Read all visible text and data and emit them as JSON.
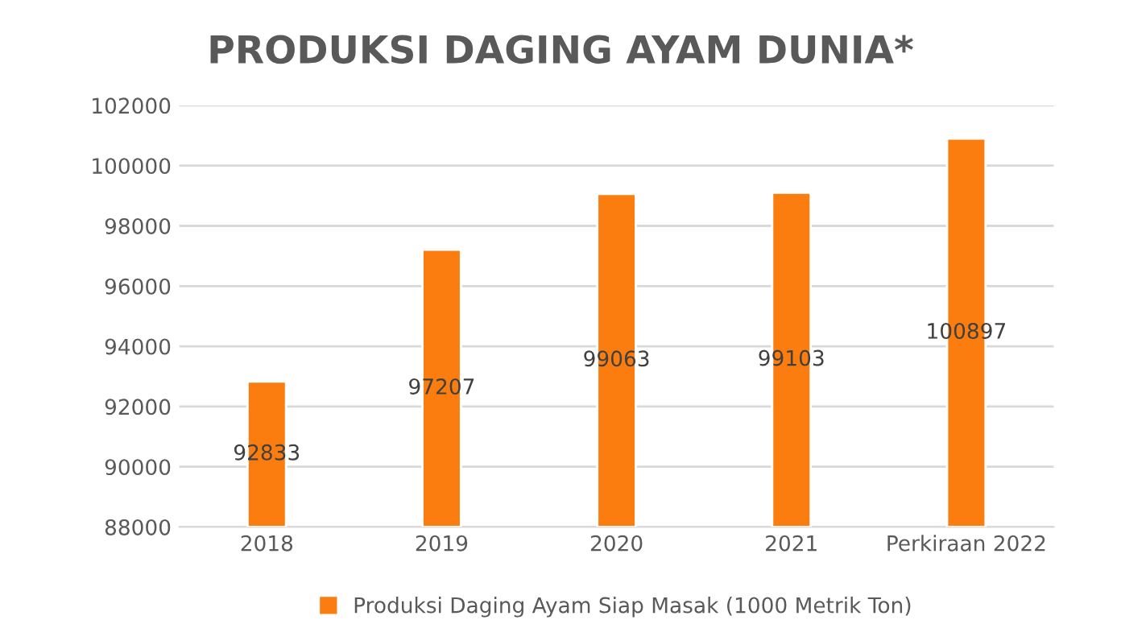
{
  "chart_data": {
    "type": "bar",
    "title": "PRODUKSI DAGING AYAM DUNIA*",
    "categories": [
      "2018",
      "2019",
      "2020",
      "2021",
      "Perkiraan 2022"
    ],
    "series": [
      {
        "name": "Produksi Daging Ayam Siap Masak (1000 Metrik Ton)",
        "color": "#fb7d10",
        "values": [
          92833,
          97207,
          99063,
          99103,
          100897
        ]
      }
    ],
    "ylim": [
      88000,
      102000
    ],
    "yticks": [
      88000,
      90000,
      92000,
      94000,
      96000,
      98000,
      100000,
      102000
    ],
    "grid": "y",
    "legend": "bottom",
    "data_labels": true
  }
}
